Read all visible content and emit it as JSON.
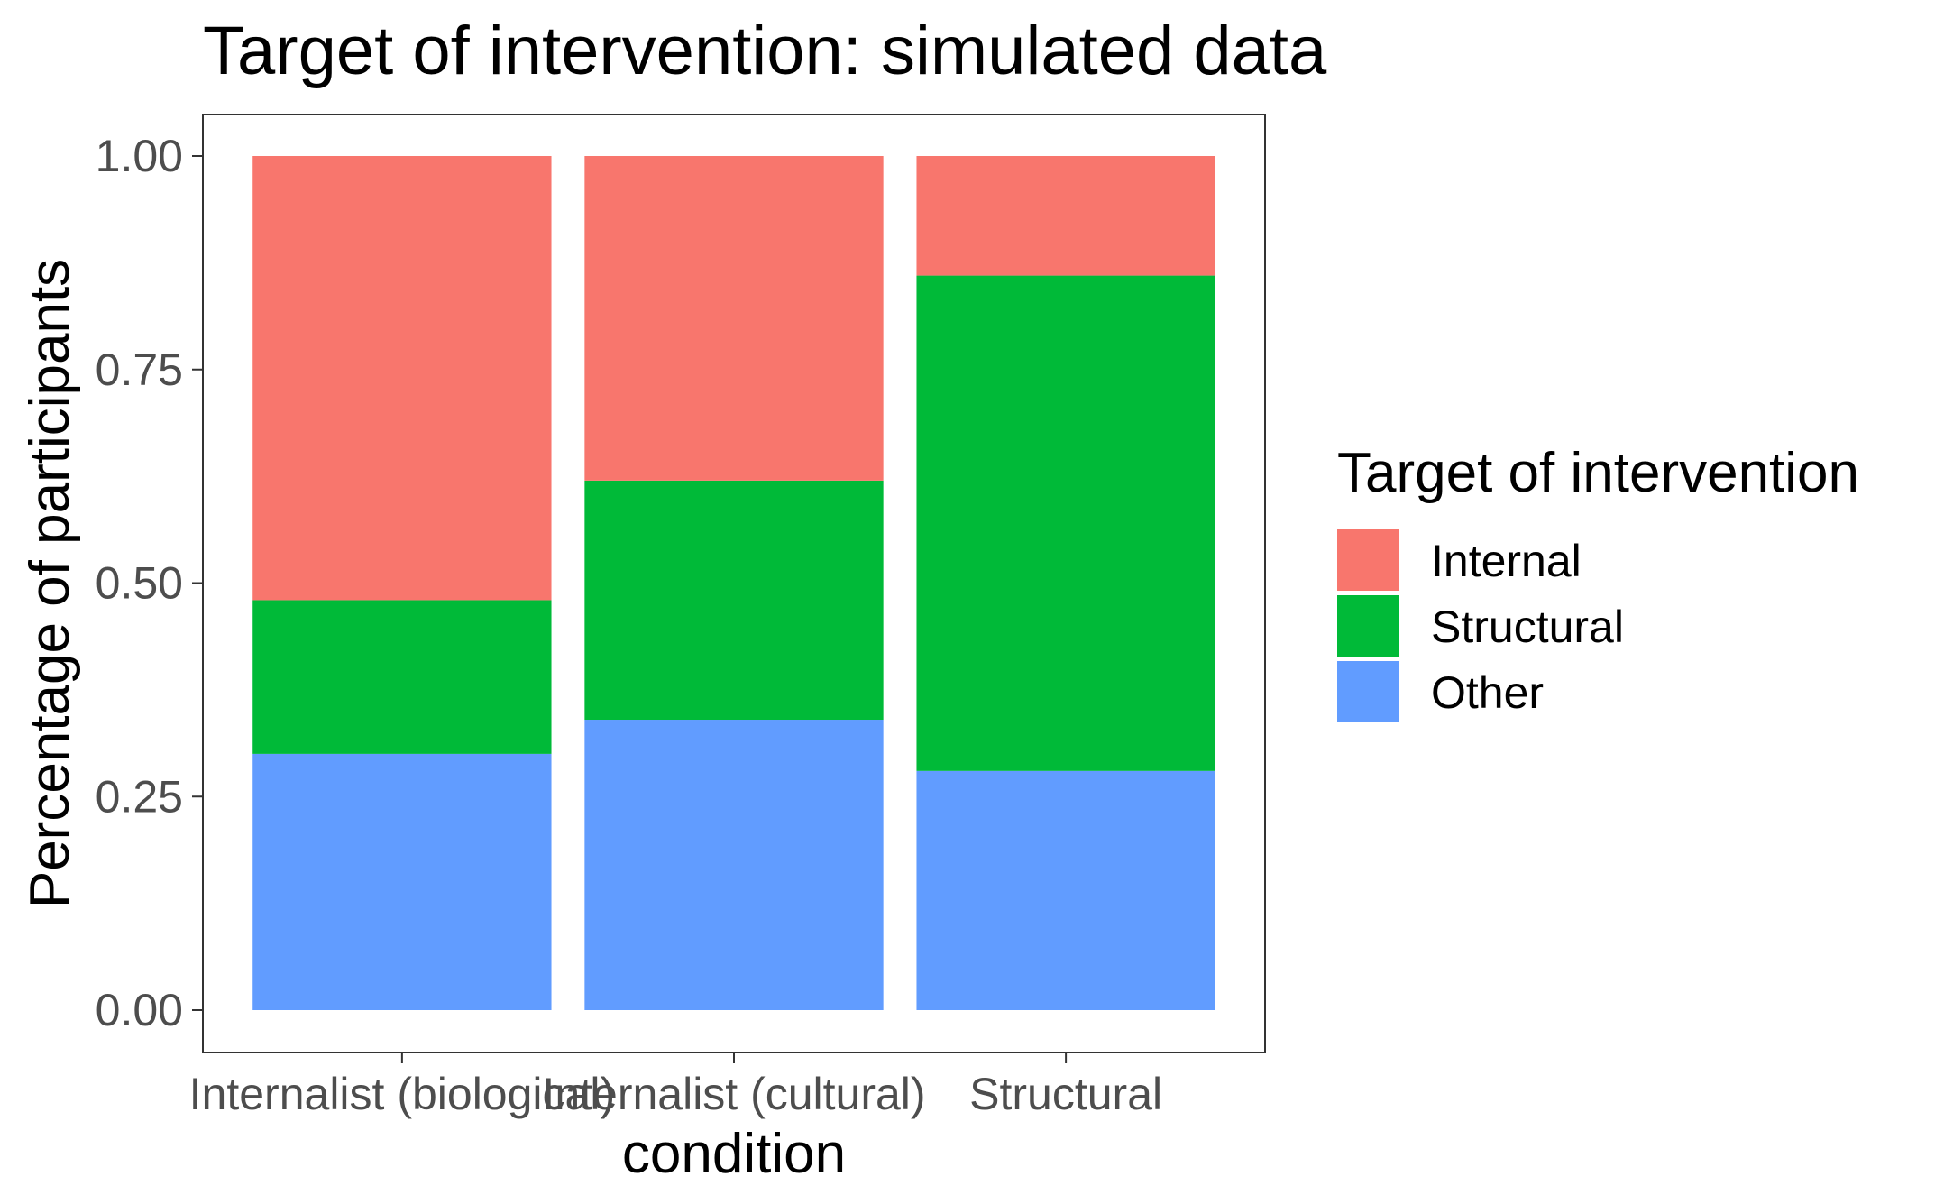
{
  "chart_data": {
    "type": "bar",
    "stacked": true,
    "normalized": true,
    "title": "Target of intervention: simulated data",
    "xlabel": "condition",
    "ylabel": "Percentage of participants",
    "categories": [
      "Internalist (biological)",
      "Internalist (cultural)",
      "Structural"
    ],
    "ylim": [
      0,
      1
    ],
    "yticks": [
      "0.00",
      "0.25",
      "0.50",
      "0.75",
      "1.00"
    ],
    "ytick_values": [
      0,
      0.25,
      0.5,
      0.75,
      1.0
    ],
    "series": [
      {
        "name": "Other",
        "values": [
          0.3,
          0.34,
          0.28
        ],
        "color": "#619CFF"
      },
      {
        "name": "Structural",
        "values": [
          0.18,
          0.28,
          0.58
        ],
        "color": "#00BA38"
      },
      {
        "name": "Internal",
        "values": [
          0.52,
          0.38,
          0.14
        ],
        "color": "#F8766D"
      }
    ],
    "legend": {
      "title": "Target of intervention",
      "position": "right",
      "entries": [
        {
          "label": "Internal",
          "color": "#F8766D"
        },
        {
          "label": "Structural",
          "color": "#00BA38"
        },
        {
          "label": "Other",
          "color": "#619CFF"
        }
      ]
    },
    "grid": false
  }
}
